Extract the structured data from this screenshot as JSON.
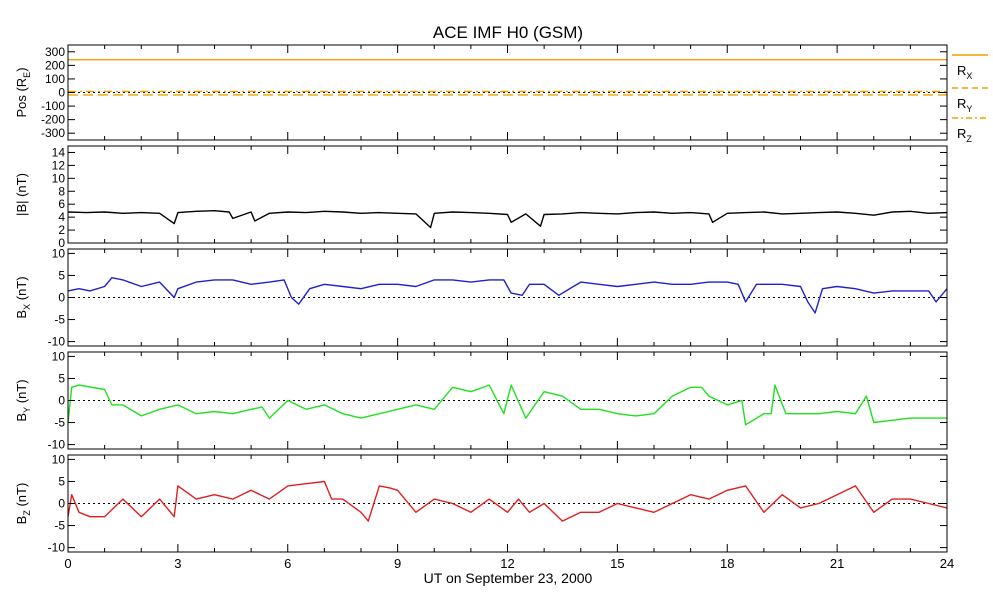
{
  "chart_data": {
    "type": "line",
    "title": "ACE IMF H0 (GSM)",
    "xlabel": "UT on September 23, 2000",
    "xlim": [
      0,
      24
    ],
    "x_ticks": [
      "0",
      "3",
      "6",
      "9",
      "12",
      "15",
      "18",
      "21",
      "24"
    ],
    "zero_line": "dotted",
    "panels": [
      {
        "id": "pos",
        "ylabel_main": "Pos (R",
        "ylabel_sub": "E",
        "ylabel_tail": ")",
        "ylim": [
          -350,
          350
        ],
        "y_ticks": [
          300,
          200,
          100,
          0,
          -100,
          -200,
          -300
        ],
        "y_tick_labels": [
          "300",
          "200",
          "100",
          "0",
          "-100",
          "-200",
          "-300"
        ],
        "series": [
          {
            "name": "R",
            "sub": "X",
            "color": "#f0a000",
            "style": "solid",
            "values": [
              242,
              242
            ]
          },
          {
            "name": "R",
            "sub": "Y",
            "color": "#f0a000",
            "style": "dashed",
            "values": [
              -18,
              -18
            ]
          },
          {
            "name": "R",
            "sub": "Z",
            "color": "#f0a000",
            "style": "dashdot",
            "values": [
              8,
              8
            ]
          }
        ],
        "x": [
          0,
          24
        ]
      },
      {
        "id": "bmag",
        "ylabel_main": "|B| (nT)",
        "ylim": [
          0,
          15
        ],
        "y_ticks": [
          14,
          12,
          10,
          8,
          6,
          4,
          2,
          0
        ],
        "y_tick_labels": [
          "14",
          "12",
          "10",
          "8",
          "6",
          "4",
          "2",
          "0"
        ],
        "series": [
          {
            "name": "|B|",
            "color": "#000000",
            "x": [
              0,
              0.5,
              1,
              1.5,
              2,
              2.5,
              2.9,
              3,
              3.5,
              4,
              4.4,
              4.5,
              5,
              5.1,
              5.5,
              6,
              6.5,
              7,
              7.5,
              8,
              8.5,
              9,
              9.5,
              9.9,
              10,
              10.5,
              11,
              11.5,
              12,
              12.1,
              12.5,
              12.9,
              13,
              13.5,
              14,
              14.5,
              15,
              15.5,
              16,
              16.5,
              17,
              17.5,
              17.6,
              18,
              18.5,
              19,
              19.5,
              20,
              20.5,
              21,
              21.5,
              22,
              22.5,
              23,
              23.5,
              24
            ],
            "values": [
              4.8,
              4.7,
              4.8,
              4.6,
              4.7,
              4.6,
              3,
              4.7,
              4.9,
              5,
              4.8,
              3.8,
              4.8,
              3.4,
              4.6,
              4.8,
              4.7,
              4.9,
              4.8,
              4.6,
              4.7,
              4.6,
              4.5,
              2.4,
              4.6,
              4.8,
              4.7,
              4.6,
              4.4,
              3.2,
              4.5,
              2.6,
              4.4,
              4.5,
              4.7,
              4.6,
              4.5,
              4.7,
              4.8,
              4.6,
              4.7,
              4.5,
              3.2,
              4.6,
              4.7,
              4.8,
              4.5,
              4.6,
              4.7,
              4.8,
              4.6,
              4.3,
              4.8,
              4.9,
              4.6,
              4.7
            ]
          }
        ]
      },
      {
        "id": "bx",
        "ylabel_main": "B",
        "ylabel_sub": "X",
        "ylabel_tail": " (nT)",
        "ylim": [
          -11,
          11
        ],
        "y_ticks": [
          10,
          5,
          0,
          -5,
          -10
        ],
        "y_tick_labels": [
          "10",
          "5",
          "0",
          "-5",
          "-10"
        ],
        "series": [
          {
            "name": "BX",
            "color": "#2020d0",
            "x": [
              0,
              0.3,
              0.6,
              1,
              1.2,
              1.5,
              2,
              2.5,
              2.9,
              3,
              3.5,
              4,
              4.5,
              5,
              5.5,
              5.9,
              6.1,
              6.3,
              6.6,
              7,
              7.5,
              8,
              8.5,
              9,
              9.5,
              10,
              10.5,
              11,
              11.5,
              11.9,
              12.1,
              12.4,
              12.6,
              13,
              13.4,
              13.8,
              14,
              14.5,
              15,
              15.5,
              16,
              16.5,
              17,
              17.5,
              18,
              18.3,
              18.5,
              18.8,
              19,
              19.5,
              20,
              20.2,
              20.4,
              20.6,
              21,
              21.5,
              22,
              22.5,
              23,
              23.5,
              23.7,
              24
            ],
            "values": [
              1.5,
              2,
              1.5,
              2.5,
              4.5,
              4,
              2.5,
              3.5,
              0,
              2,
              3.5,
              4,
              4,
              3,
              3.5,
              4,
              0,
              -1.5,
              2,
              3,
              2.5,
              2,
              3,
              3,
              2.5,
              4,
              4,
              3.5,
              4,
              4,
              1,
              0.5,
              3,
              3,
              0.5,
              2.5,
              3.5,
              3,
              2.5,
              3,
              3.5,
              3,
              3,
              3.5,
              3.5,
              3,
              -1,
              3,
              3,
              3,
              2.5,
              -1,
              -3.5,
              2,
              2.5,
              2,
              1,
              1.5,
              1.5,
              1.5,
              -1,
              2
            ]
          }
        ]
      },
      {
        "id": "by",
        "ylabel_main": "B",
        "ylabel_sub": "Y",
        "ylabel_tail": " (nT)",
        "ylim": [
          -11,
          11
        ],
        "y_ticks": [
          10,
          5,
          0,
          -5,
          -10
        ],
        "y_tick_labels": [
          "10",
          "5",
          "0",
          "-5",
          "-10"
        ],
        "series": [
          {
            "name": "BY",
            "color": "#20e020",
            "x": [
              0,
              0.1,
              0.3,
              1,
              1.2,
              1.5,
              2,
              2.5,
              3,
              3.5,
              4,
              4.5,
              5,
              5.3,
              5.5,
              6,
              6.5,
              7,
              7.5,
              8,
              8.5,
              9,
              9.5,
              10,
              10.5,
              11,
              11.5,
              11.9,
              12.1,
              12.5,
              13,
              13.5,
              14,
              14.5,
              15,
              15.5,
              16,
              16.5,
              17,
              17.3,
              17.5,
              18,
              18.4,
              18.5,
              19,
              19.2,
              19.3,
              19.6,
              20,
              20.5,
              21,
              21.5,
              21.8,
              22,
              22.5,
              23,
              23.5,
              24
            ],
            "values": [
              -5,
              3,
              3.5,
              2.5,
              -1,
              -1,
              -3.5,
              -2,
              -1,
              -3,
              -2.5,
              -3,
              -2,
              -1.5,
              -4,
              0,
              -2,
              -1,
              -3,
              -4,
              -3,
              -2,
              -1,
              -2,
              3,
              2,
              3.5,
              -3,
              3.5,
              -4,
              2,
              1,
              -2,
              -2,
              -3,
              -3.5,
              -3,
              1,
              3,
              3,
              1,
              -1,
              0,
              -5.5,
              -3,
              -3,
              3.5,
              -3,
              -3,
              -3,
              -2.5,
              -3,
              1,
              -5,
              -4.5,
              -4,
              -4,
              -4
            ]
          }
        ]
      },
      {
        "id": "bz",
        "ylabel_main": "B",
        "ylabel_sub": "Z",
        "ylabel_tail": " (nT)",
        "ylim": [
          -11,
          11
        ],
        "y_ticks": [
          10,
          5,
          0,
          -5,
          -10
        ],
        "y_tick_labels": [
          "10",
          "5",
          "0",
          "-5",
          "-10"
        ],
        "series": [
          {
            "name": "BZ",
            "color": "#e02020",
            "x": [
              0,
              0.1,
              0.3,
              0.6,
              1,
              1.5,
              2,
              2.5,
              2.9,
              3,
              3.5,
              4,
              4.5,
              5,
              5.5,
              6,
              6.5,
              7,
              7.2,
              7.5,
              8,
              8.2,
              8.5,
              8.8,
              9,
              9.5,
              10,
              10.5,
              11,
              11.5,
              12,
              12.3,
              12.6,
              13,
              13.5,
              14,
              14.5,
              15,
              15.5,
              16,
              16.5,
              17,
              17.5,
              18,
              18.5,
              19,
              19.5,
              20,
              20.5,
              21,
              21.5,
              22,
              22.5,
              23,
              23.5,
              24
            ],
            "values": [
              -3,
              2,
              -2,
              -3,
              -3,
              1,
              -3,
              1,
              -3,
              4,
              1,
              2,
              1,
              3,
              1,
              4,
              4.5,
              5,
              1,
              1,
              -2,
              -4,
              4,
              3.5,
              3,
              -2,
              1,
              0,
              -2,
              1,
              -2,
              1,
              -2,
              0,
              -4,
              -2,
              -2,
              0,
              -1,
              -2,
              0,
              2,
              1,
              3,
              4,
              -2,
              2,
              -1,
              0,
              2,
              4,
              -2,
              1,
              1,
              0,
              -1
            ]
          }
        ]
      }
    ]
  }
}
